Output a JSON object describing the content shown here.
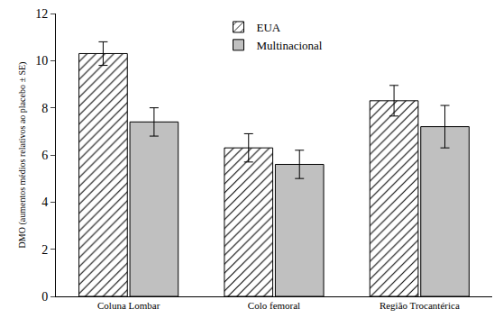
{
  "chart_data": {
    "type": "bar",
    "y_label": "DMO (aumentos médios relativos ao placebo ± SE)",
    "categories": [
      "Coluna Lombar",
      "Colo femoral",
      "Região Trocantérica"
    ],
    "series": [
      {
        "name": "EUA",
        "color": "#ffffff",
        "marker": "hatch",
        "values": [
          10.3,
          6.3,
          8.3
        ],
        "errors": [
          0.5,
          0.6,
          0.65
        ]
      },
      {
        "name": "Multinacional",
        "color": "#c0c0c0",
        "values": [
          7.4,
          5.6,
          7.2
        ],
        "errors": [
          0.6,
          0.6,
          0.9
        ]
      }
    ],
    "ylim": [
      0,
      12
    ],
    "yticks": [
      0,
      2,
      4,
      6,
      8,
      10,
      12
    ],
    "grid": false,
    "legend": "top"
  }
}
